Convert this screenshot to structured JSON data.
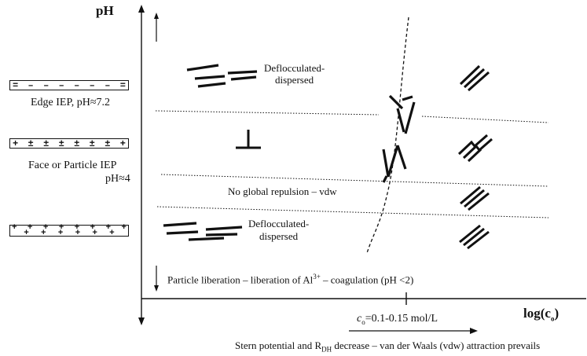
{
  "axes": {
    "y_label": "pH",
    "x_label": "log(c",
    "x_label_sub": "o",
    "x_label_end": ")"
  },
  "charge_boxes": {
    "edge_symbols": [
      "=",
      "–",
      "–",
      "–",
      "–",
      "–",
      "–",
      "="
    ],
    "face_symbols": [
      "+",
      "±",
      "±",
      "±",
      "±",
      "±",
      "±",
      "+"
    ],
    "low_top": [
      "+",
      "+",
      "+",
      "+",
      "+",
      "+",
      "+",
      "+"
    ],
    "low_bottom": [
      "",
      "+",
      "+",
      "+",
      "+",
      "+",
      "+",
      ""
    ]
  },
  "labels": {
    "edge_iep": "Edge IEP, pH≈7.2",
    "face_iep_line1": "Face or Particle IEP",
    "face_iep_line2": "pH≈4",
    "deflocculated_top_line1": "Deflocculated-",
    "deflocculated_top_line2": "dispersed",
    "no_global_repulsion": "No global repulsion – vdw",
    "deflocculated_bottom_line1": "Deflocculated-",
    "deflocculated_bottom_line2": "dispersed",
    "liberation_pre": "Particle liberation – liberation of Al",
    "liberation_sup": "3+",
    "liberation_post": " – coagulation (pH <2)",
    "concentration_pre": "c",
    "concentration_sub": "o",
    "concentration_post": "=0.1-0.15 mol/L",
    "stern_pre": "Stern potential and R",
    "stern_sub": "DH",
    "stern_post": " decrease – van der Waals (vdw) attraction prevails"
  }
}
